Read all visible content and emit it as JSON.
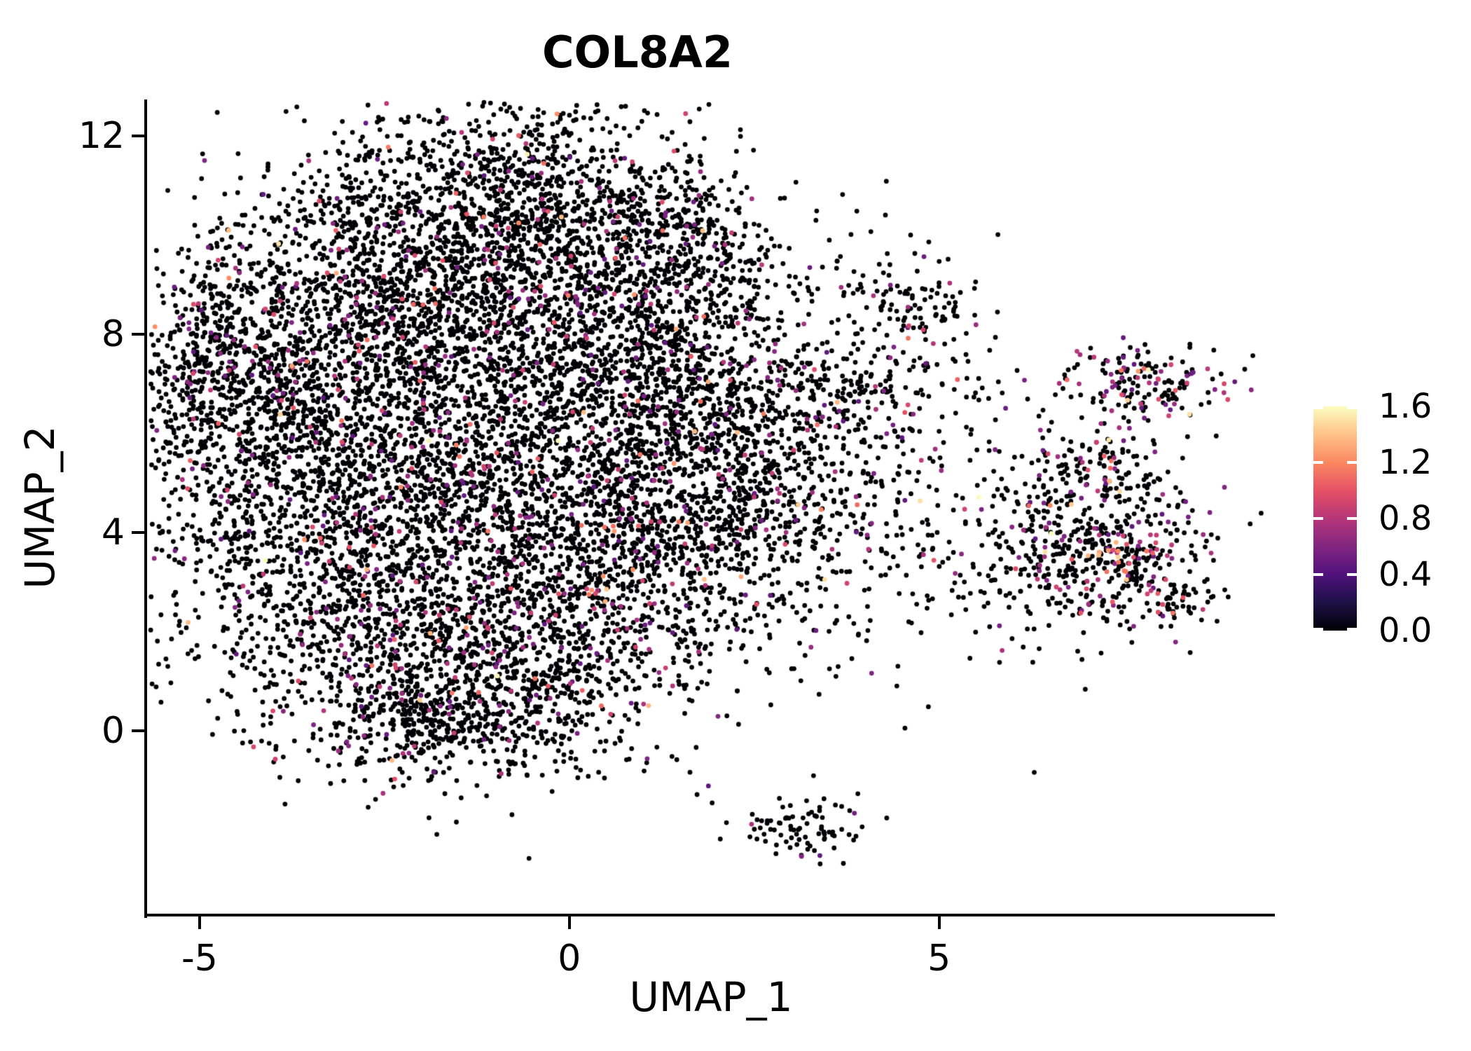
{
  "chart_data": {
    "type": "scatter",
    "title": "COL8A2",
    "xlabel": "UMAP_1",
    "ylabel": "UMAP_2",
    "x_ticks": [
      {
        "label": "-5",
        "value": -5
      },
      {
        "label": "0",
        "value": 0
      },
      {
        "label": "5",
        "value": 5
      }
    ],
    "y_ticks": [
      {
        "label": "0",
        "value": 0
      },
      {
        "label": "4",
        "value": 4
      },
      {
        "label": "8",
        "value": 8
      },
      {
        "label": "12",
        "value": 12
      }
    ],
    "x_range": [
      -5.71,
      9.54
    ],
    "y_range": [
      -3.72,
      12.74
    ],
    "grid": false,
    "background": "#ffffff",
    "text_color": "#000000",
    "legend_position": "right",
    "colorbar": {
      "min": 0.0,
      "max": 1.6,
      "ticks": [
        {
          "label": "1.6",
          "value": 1.6
        },
        {
          "label": "1.2",
          "value": 1.2
        },
        {
          "label": "0.8",
          "value": 0.8
        },
        {
          "label": "0.4",
          "value": 0.4
        },
        {
          "label": "0.0",
          "value": 0.0
        }
      ],
      "colormap": "magma",
      "stops": [
        "#000004",
        "#1D1147",
        "#51127C",
        "#822681",
        "#B63679",
        "#E65164",
        "#FB8861",
        "#FEC287",
        "#FCFDBF"
      ]
    },
    "point": {
      "radius_px": 3.4,
      "zero_color": "#000004"
    },
    "seed": 1337,
    "clusters": [
      {
        "cx": -1.64,
        "cy": 10.65,
        "sx": 1.23,
        "sy": 1.13,
        "n": 700,
        "colored": 0.06
      },
      {
        "cx": -0.12,
        "cy": 10.51,
        "sx": 1.04,
        "sy": 1.2,
        "n": 600,
        "colored": 0.06
      },
      {
        "cx": -2.77,
        "cy": 8.67,
        "sx": 1.14,
        "sy": 1.27,
        "n": 700,
        "colored": 0.07
      },
      {
        "cx": -0.5,
        "cy": 8.39,
        "sx": 1.42,
        "sy": 1.41,
        "n": 800,
        "colored": 0.07
      },
      {
        "cx": 1.3,
        "cy": 8.81,
        "sx": 0.85,
        "sy": 1.13,
        "n": 450,
        "colored": 0.07
      },
      {
        "cx": -4.1,
        "cy": 6.83,
        "sx": 1.04,
        "sy": 1.41,
        "n": 650,
        "colored": 0.07
      },
      {
        "cx": -4.86,
        "cy": 7.4,
        "sx": 0.57,
        "sy": 0.99,
        "n": 250,
        "colored": 0.07
      },
      {
        "cx": -2.02,
        "cy": 5.98,
        "sx": 1.42,
        "sy": 1.56,
        "n": 900,
        "colored": 0.07
      },
      {
        "cx": 0.35,
        "cy": 5.7,
        "sx": 1.33,
        "sy": 1.56,
        "n": 800,
        "colored": 0.07
      },
      {
        "cx": -3.72,
        "cy": 4.0,
        "sx": 1.14,
        "sy": 1.41,
        "n": 700,
        "colored": 0.08
      },
      {
        "cx": -1.26,
        "cy": 3.44,
        "sx": 1.42,
        "sy": 1.56,
        "n": 900,
        "colored": 0.08
      },
      {
        "cx": 1.01,
        "cy": 3.58,
        "sx": 1.14,
        "sy": 1.41,
        "n": 650,
        "colored": 0.09
      },
      {
        "cx": -2.4,
        "cy": 1.32,
        "sx": 1.14,
        "sy": 1.13,
        "n": 550,
        "colored": 0.07
      },
      {
        "cx": -0.31,
        "cy": 1.32,
        "sx": 1.04,
        "sy": 1.13,
        "n": 500,
        "colored": 0.08
      },
      {
        "cx": -1.64,
        "cy": 0.18,
        "sx": 0.85,
        "sy": 0.57,
        "n": 260,
        "colored": 0.08
      },
      {
        "cx": 1.77,
        "cy": 6.83,
        "sx": 0.76,
        "sy": 1.27,
        "n": 350,
        "colored": 0.08
      },
      {
        "cx": 2.53,
        "cy": 4.85,
        "sx": 0.85,
        "sy": 1.27,
        "n": 350,
        "colored": 0.1
      },
      {
        "cx": 1.49,
        "cy": 10.37,
        "sx": 0.47,
        "sy": 0.57,
        "n": 130,
        "colored": 0.06
      },
      {
        "cx": 4.75,
        "cy": 8.53,
        "sx": 0.43,
        "sy": 0.5,
        "n": 110,
        "colored": 0.1
      },
      {
        "cx": 4.04,
        "cy": 6.87,
        "sx": 1.09,
        "sy": 0.4,
        "n": 160,
        "colored": 0.12
      },
      {
        "cx": 3.48,
        "cy": 5.56,
        "sx": 0.76,
        "sy": 0.85,
        "n": 120,
        "colored": 0.08
      },
      {
        "cx": 7.74,
        "cy": 7.04,
        "sx": 0.57,
        "sy": 0.4,
        "n": 170,
        "colored": 0.42
      },
      {
        "cx": 7.12,
        "cy": 5.28,
        "sx": 0.57,
        "sy": 0.42,
        "n": 130,
        "colored": 0.3
      },
      {
        "cx": 7.36,
        "cy": 3.58,
        "sx": 0.71,
        "sy": 0.71,
        "n": 320,
        "colored": 0.2
      },
      {
        "cx": 7.5,
        "cy": 3.44,
        "sx": 0.24,
        "sy": 0.28,
        "n": 30,
        "colored": 0.55,
        "bias": "orange"
      },
      {
        "cx": 6.32,
        "cy": 3.72,
        "sx": 0.8,
        "sy": 0.99,
        "n": 220,
        "colored": 0.12
      },
      {
        "cx": 8.26,
        "cy": 2.66,
        "sx": 0.27,
        "sy": 0.25,
        "n": 45,
        "colored": 0.08
      },
      {
        "cx": 3.29,
        "cy": -1.94,
        "sx": 0.38,
        "sy": 0.35,
        "n": 65,
        "colored": 0.07
      },
      {
        "cx": 2.72,
        "cy": -2.01,
        "sx": 0.24,
        "sy": 0.17,
        "n": 20,
        "colored": 0.05
      },
      {
        "cx": -1.26,
        "cy": 5.98,
        "sx": 3.3,
        "sy": 3.2,
        "n": 220,
        "colored": 0.05
      },
      {
        "cx": 4.14,
        "cy": 4.29,
        "sx": 1.14,
        "sy": 1.56,
        "n": 170,
        "colored": 0.1
      },
      {
        "cx": 3.19,
        "cy": 8.67,
        "sx": 0.76,
        "sy": 1.13,
        "n": 60,
        "colored": 0.07
      }
    ]
  }
}
